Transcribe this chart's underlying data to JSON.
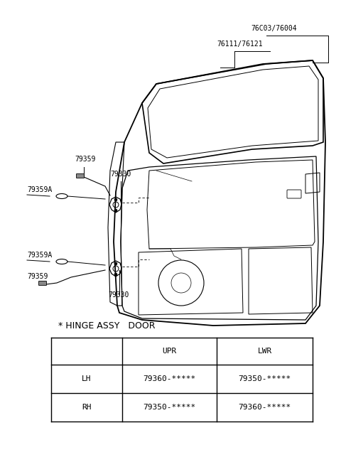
{
  "bg_color": "#ffffff",
  "labels": {
    "76C03_76004": "76C03/76004",
    "76111_76121": "76111/76121",
    "79359_upper": "79359",
    "79330_upper": "79330",
    "79359A_upper": "79359A",
    "79359A_lower": "79359A",
    "79359_lower": "79359",
    "79330_lower": "79330"
  },
  "hinge_label": "* HINGE ASSY   DOOR",
  "table": {
    "headers": [
      "",
      "UPR",
      "LWR"
    ],
    "rows": [
      [
        "LH",
        "79360-*****",
        "79350-*****"
      ],
      [
        "RH",
        "79350-*****",
        "79360-*****"
      ]
    ]
  },
  "figsize": [
    4.8,
    6.57
  ],
  "dpi": 100
}
